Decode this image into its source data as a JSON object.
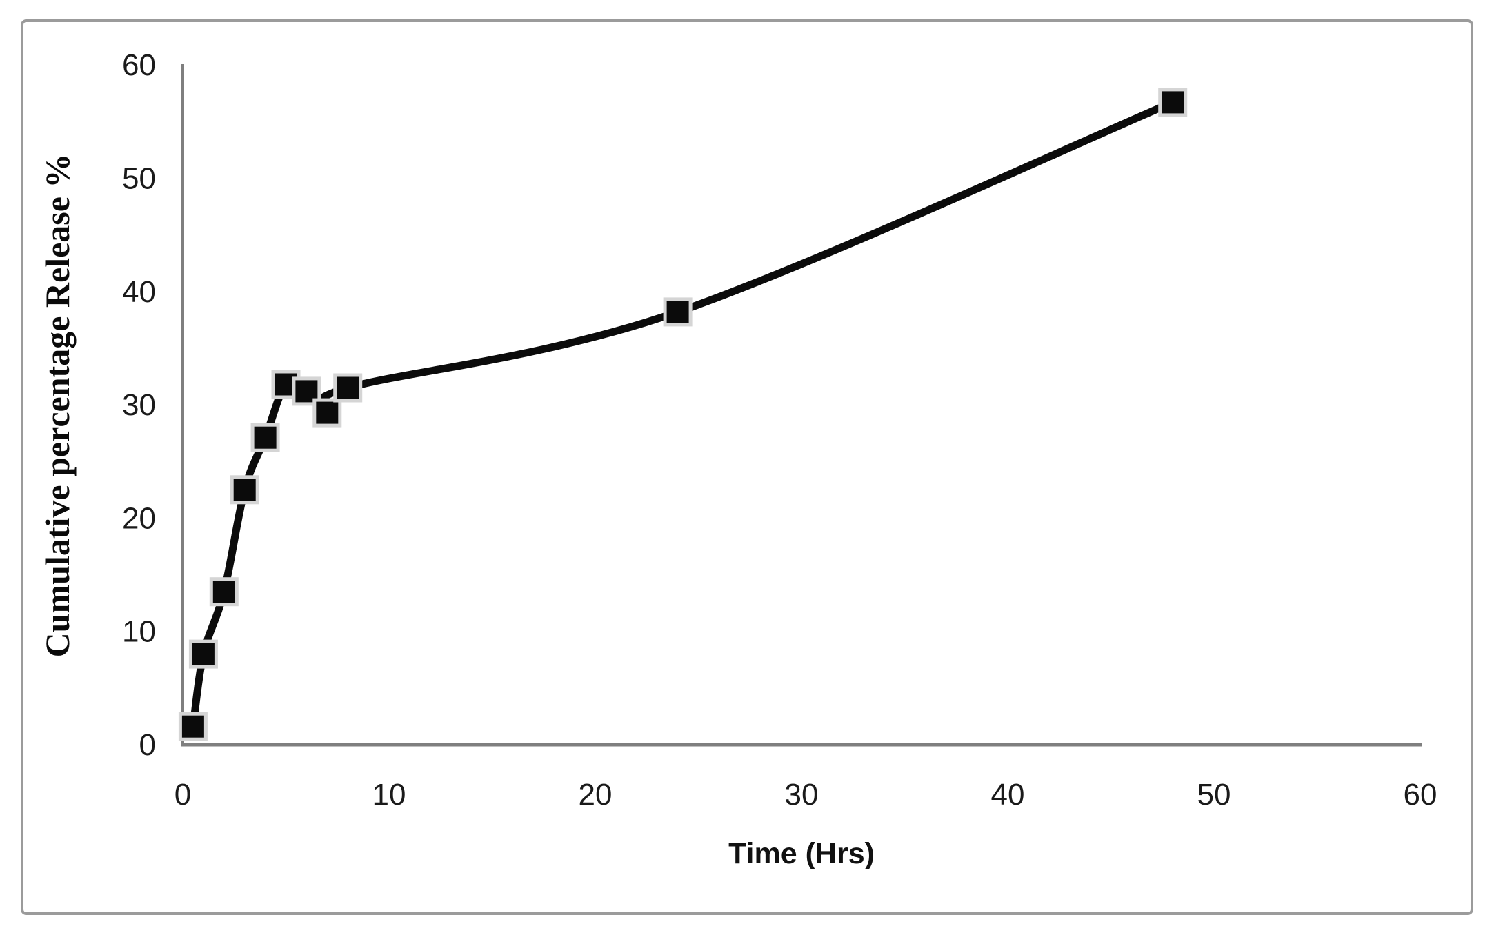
{
  "figure": {
    "kind": "scientific-figure",
    "border_color": "#9b9b9b",
    "background_color": "#ffffff"
  },
  "chart_data": {
    "type": "line",
    "title": "",
    "xlabel": "Time (Hrs)",
    "ylabel": "Cumulative percentage Release %",
    "xlim": [
      0,
      60
    ],
    "ylim": [
      0,
      60
    ],
    "x_ticks": [
      0,
      10,
      20,
      30,
      40,
      50,
      60
    ],
    "y_ticks": [
      0,
      10,
      20,
      30,
      40,
      50,
      60
    ],
    "grid": false,
    "legend": "none",
    "series": [
      {
        "name": "Cumulative percentage Release %",
        "x": [
          0.5,
          1,
          2,
          3,
          4,
          5,
          6,
          7,
          8,
          24,
          48
        ],
        "y": [
          1.6,
          8.0,
          13.5,
          22.5,
          27.1,
          31.8,
          31.2,
          29.3,
          31.5,
          38.2,
          56.7
        ],
        "marker": "filled-square",
        "line_style": "smooth",
        "line_color": "#0b0b0b",
        "marker_fill": "#0b0b0b",
        "marker_outline": "#d5d5d5"
      }
    ],
    "axis_color": "#7f7f7f"
  }
}
